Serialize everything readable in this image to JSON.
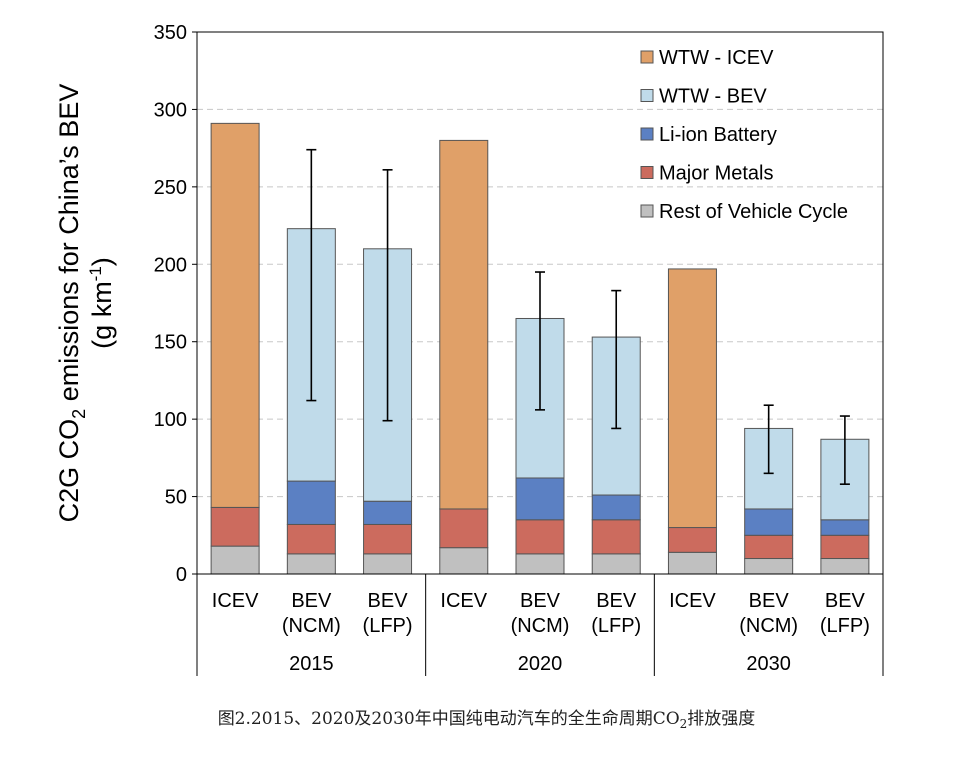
{
  "chart_data": {
    "type": "bar",
    "stacked": true,
    "ylabel_main": "C2G CO",
    "ylabel_sub": "2",
    "ylabel_rest": " emissions for China’s BEV",
    "ylabel_unit_prefix": "(g km",
    "ylabel_unit_sup": "-1",
    "ylabel_unit_suffix": ")",
    "ylim": [
      0,
      350
    ],
    "yticks": [
      0,
      50,
      100,
      150,
      200,
      250,
      300,
      350
    ],
    "grid": true,
    "legend_position": "top-right",
    "groups": [
      "2015",
      "2020",
      "2030"
    ],
    "categories": [
      {
        "line1": "ICEV",
        "line2": "",
        "group": "2015"
      },
      {
        "line1": "BEV",
        "line2": "(NCM)",
        "group": "2015"
      },
      {
        "line1": "BEV",
        "line2": "(LFP)",
        "group": "2015"
      },
      {
        "line1": "ICEV",
        "line2": "",
        "group": "2020"
      },
      {
        "line1": "BEV",
        "line2": "(NCM)",
        "group": "2020"
      },
      {
        "line1": "BEV",
        "line2": "(LFP)",
        "group": "2020"
      },
      {
        "line1": "ICEV",
        "line2": "",
        "group": "2030"
      },
      {
        "line1": "BEV",
        "line2": "(NCM)",
        "group": "2030"
      },
      {
        "line1": "BEV",
        "line2": "(LFP)",
        "group": "2030"
      }
    ],
    "series": [
      {
        "name": "Rest of Vehicle Cycle",
        "color": "#c0c0c0",
        "values": [
          18,
          13,
          13,
          17,
          13,
          13,
          14,
          10,
          10
        ]
      },
      {
        "name": "Major Metals",
        "color": "#cc6b5e",
        "values": [
          25,
          19,
          19,
          25,
          22,
          22,
          16,
          15,
          15
        ]
      },
      {
        "name": "Li-ion Battery",
        "color": "#5b80c3",
        "values": [
          0,
          28,
          15,
          0,
          27,
          16,
          0,
          17,
          10
        ]
      },
      {
        "name": "WTW - BEV",
        "color": "#c0dbea",
        "values": [
          0,
          163,
          163,
          0,
          103,
          102,
          0,
          52,
          52
        ]
      },
      {
        "name": "WTW - ICEV",
        "color": "#e0a068",
        "values": [
          248,
          0,
          0,
          238,
          0,
          0,
          167,
          0,
          0
        ]
      }
    ],
    "legend_order": [
      "WTW - ICEV",
      "WTW - BEV",
      "Li-ion Battery",
      "Major Metals",
      "Rest of Vehicle Cycle"
    ],
    "error_bars": [
      null,
      [
        112,
        274
      ],
      [
        99,
        261
      ],
      null,
      [
        106,
        195
      ],
      [
        94,
        183
      ],
      null,
      [
        65,
        109
      ],
      [
        58,
        102
      ]
    ]
  },
  "caption": {
    "prefix": "图2.2015、2020及2030年中国纯电动汽车的全生命周期CO",
    "sub": "2",
    "suffix": "排放强度"
  }
}
